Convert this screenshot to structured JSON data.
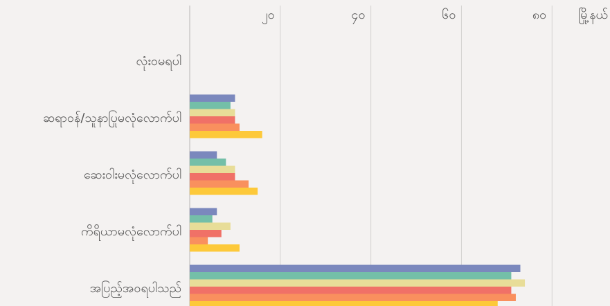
{
  "chart_data": {
    "type": "bar",
    "orientation": "horizontal",
    "x_label": "မြို့နယ်",
    "categories": [
      "လုံးဝမရပါ",
      "ဆရာဝန်/သူနာပြုမလုံလောက်ပါ",
      "ဆေးဝါးမလုံလောက်ပါ",
      "ကိရိယာမလုံလောက်ပါ",
      "အပြည့်အဝရပါသည်"
    ],
    "series": [
      {
        "color": "#7b88bd",
        "values": [
          0,
          10,
          6,
          6,
          73
        ]
      },
      {
        "color": "#74bfa8",
        "values": [
          0,
          9,
          8,
          5,
          71
        ]
      },
      {
        "color": "#e8dd98",
        "values": [
          0,
          10,
          10,
          9,
          74
        ]
      },
      {
        "color": "#f07167",
        "values": [
          0,
          10,
          10,
          7,
          71
        ]
      },
      {
        "color": "#f9905e",
        "values": [
          0,
          11,
          13,
          4,
          72
        ]
      },
      {
        "color": "#fdc93a",
        "values": [
          0,
          16,
          15,
          11,
          68
        ]
      }
    ],
    "xlim": [
      0,
      92.8
    ],
    "xticks": [
      {
        "value": 20,
        "label": "၂၀"
      },
      {
        "value": 40,
        "label": "၄၀"
      },
      {
        "value": 60,
        "label": "၆၀"
      },
      {
        "value": 80,
        "label": "၈၀"
      }
    ],
    "grid": true
  }
}
